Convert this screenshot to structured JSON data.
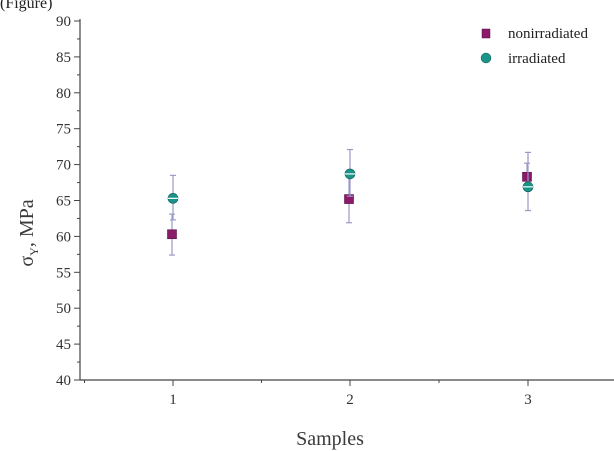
{
  "top_fragment": "(Figure)",
  "colors": {
    "nonirradiated": "#8b1a6b",
    "irradiated": "#1a9488",
    "error_bar": "#9a9ac8",
    "axis": "#444444"
  },
  "chart_data": {
    "type": "scatter",
    "xlabel": "Samples",
    "ylabel_main": "σ",
    "ylabel_sub": "Y",
    "ylabel_rest": ", MPa",
    "categories": [
      "1",
      "2",
      "3"
    ],
    "x_ticks": [
      "1",
      "2",
      "3"
    ],
    "ylim": [
      40,
      90
    ],
    "y_ticks": [
      "40",
      "45",
      "50",
      "55",
      "60",
      "65",
      "70",
      "75",
      "80",
      "85",
      "90"
    ],
    "legend_position": "top-right",
    "series": [
      {
        "name": "nonirradiated",
        "marker": "square",
        "values": [
          60.3,
          65.2,
          68.3
        ],
        "err_low": [
          57.4,
          61.9,
          66.9
        ],
        "err_high": [
          63.1,
          68.3,
          70.2
        ]
      },
      {
        "name": "irradiated",
        "marker": "circle",
        "values": [
          65.3,
          68.7,
          66.9
        ],
        "err_low": [
          62.3,
          65.6,
          63.6
        ],
        "err_high": [
          68.5,
          72.1,
          71.7
        ]
      }
    ]
  }
}
